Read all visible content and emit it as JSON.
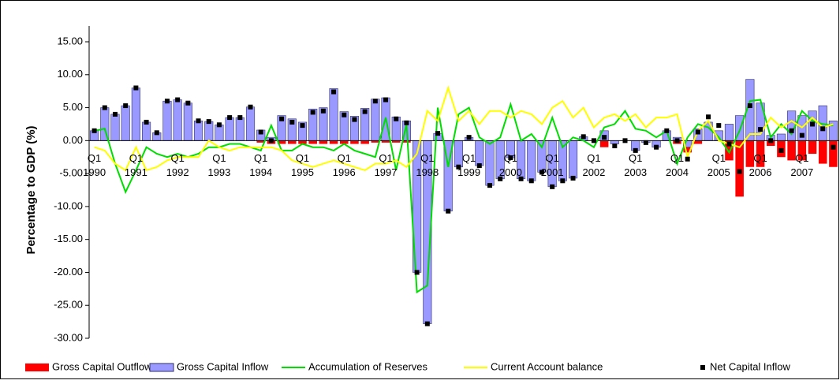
{
  "chart_data": {
    "type": "bar-line",
    "y_label": "Percentage to GDP (%)",
    "categories": [
      "Q1",
      null,
      null,
      null,
      "Q1",
      null,
      null,
      null,
      "Q1",
      null,
      null,
      null,
      "Q1",
      null,
      null,
      null,
      "Q1",
      null,
      null,
      null,
      "Q1",
      null,
      null,
      null,
      "Q1",
      null,
      null,
      null,
      "Q1",
      null,
      null,
      null,
      "Q1",
      null,
      null,
      null,
      "Q1",
      null,
      null,
      null,
      "Q1",
      null,
      null,
      null,
      "Q1",
      null,
      null,
      null,
      "Q1",
      null,
      null,
      null,
      "Q1",
      null,
      null,
      null,
      "Q1",
      null,
      null,
      null,
      "Q1",
      null,
      null,
      null,
      "Q1",
      null,
      null,
      null,
      "Q1",
      null,
      null,
      null
    ],
    "years": [
      "1990",
      "1991",
      "1992",
      "1993",
      "1994",
      "1995",
      "1996",
      "1997",
      "1998",
      "1999",
      "2000",
      "2001",
      "2002",
      "2003",
      "2004",
      "2005",
      "2006",
      "2007"
    ],
    "ylim": [
      -30,
      15
    ],
    "yticks": [
      {
        "value": 15,
        "label": "15.00"
      },
      {
        "value": 10,
        "label": "10.00"
      },
      {
        "value": 5,
        "label": "5.00"
      },
      {
        "value": 0,
        "label": "0.00"
      },
      {
        "value": -5,
        "label": "-5.00"
      },
      {
        "value": -10,
        "label": "-10.00"
      },
      {
        "value": -15,
        "label": "-15.00"
      },
      {
        "value": -20,
        "label": "-20.00"
      },
      {
        "value": -25,
        "label": "-25.00"
      },
      {
        "value": -30,
        "label": "-30.00"
      }
    ],
    "series": [
      {
        "name": "Gross Capital Outflow",
        "kind": "bar",
        "color": "#ff0000",
        "values": [
          0,
          0,
          0,
          0,
          0,
          0,
          0,
          0,
          0,
          0,
          0,
          0,
          0,
          0,
          0,
          0,
          -0.3,
          -0.5,
          -0.5,
          -0.5,
          -0.5,
          -0.5,
          -0.5,
          -0.5,
          -0.5,
          -0.5,
          -0.5,
          -0.3,
          -0.3,
          -0.3,
          -0.3,
          0,
          0,
          0,
          0,
          0,
          0,
          0,
          0,
          0,
          0,
          0,
          0,
          0,
          0,
          0,
          0,
          0,
          0,
          -1.0,
          -0.3,
          0,
          0,
          0,
          0,
          0,
          -0.5,
          -1.8,
          -0.5,
          0.8,
          0.8,
          -3.0,
          -8.5,
          -4.0,
          -4.0,
          -0.8,
          -2.5,
          -3.0,
          -3.0,
          -2.0,
          -3.5,
          -4.0
        ]
      },
      {
        "name": "Gross Capital Inflow",
        "kind": "bar",
        "color": "#9999ff",
        "values": [
          1.5,
          5.0,
          4.0,
          5.3,
          8.0,
          2.8,
          1.2,
          6.0,
          6.2,
          5.7,
          3.0,
          2.9,
          2.4,
          3.5,
          3.5,
          5.1,
          1.6,
          0.5,
          3.8,
          3.3,
          2.8,
          4.8,
          5.0,
          7.9,
          4.4,
          3.7,
          4.9,
          6.3,
          6.5,
          3.6,
          3.0,
          -20.0,
          -27.8,
          1.1,
          -10.7,
          -4.0,
          0.5,
          -3.8,
          -6.8,
          -5.8,
          -2.6,
          -5.8,
          -6.1,
          -4.8,
          -7.0,
          -6.1,
          -5.7,
          0.6,
          0.0,
          1.5,
          -0.5,
          0.0,
          -1.5,
          -0.3,
          -1.0,
          1.5,
          0.5,
          -1.0,
          1.8,
          2.8,
          1.5,
          2.5,
          3.8,
          9.3,
          5.7,
          0.8,
          1.0,
          4.5,
          3.8,
          4.5,
          5.3,
          3.0
        ]
      },
      {
        "name": "Accumulation of Reserves",
        "kind": "line",
        "color": "#00dd00",
        "values": [
          1.5,
          1.8,
          -3.5,
          -7.8,
          -4.5,
          -1.0,
          -2.0,
          -2.5,
          -2.0,
          -2.5,
          -2.0,
          -1.0,
          -1.0,
          -0.5,
          -0.5,
          -1.0,
          -1.5,
          2.3,
          -1.5,
          -1.5,
          -0.5,
          -1.0,
          -1.0,
          -1.5,
          -0.5,
          -1.5,
          -2.0,
          -2.5,
          3.5,
          -4.5,
          2.5,
          -23.0,
          -22.0,
          5.0,
          -4.0,
          4.0,
          5.0,
          0.5,
          -0.5,
          0.5,
          5.5,
          0.0,
          1.0,
          -1.0,
          3.5,
          -1.0,
          0.5,
          0.0,
          -1.0,
          2.0,
          2.5,
          4.5,
          1.8,
          1.5,
          0.5,
          1.5,
          -3.5,
          0.5,
          2.5,
          2.0,
          0.5,
          -1.8,
          1.5,
          6.0,
          6.2,
          0.5,
          2.5,
          1.0,
          4.5,
          3.0,
          2.5,
          2.3
        ]
      },
      {
        "name": "Current Account balance",
        "kind": "line",
        "color": "#ffff00",
        "values": [
          -1.0,
          -1.5,
          -3.5,
          -4.5,
          -1.0,
          -4.5,
          -4.0,
          -3.0,
          -2.5,
          -2.5,
          -2.5,
          0.0,
          -1.0,
          -1.5,
          -1.0,
          -1.0,
          -1.0,
          -1.0,
          -1.5,
          -3.0,
          -3.5,
          -4.0,
          -3.5,
          -3.0,
          -3.5,
          -4.0,
          -4.5,
          -3.5,
          -3.5,
          -3.0,
          -4.0,
          -2.0,
          4.5,
          3.0,
          8.0,
          3.0,
          4.5,
          2.5,
          4.5,
          4.5,
          3.5,
          4.5,
          4.0,
          2.5,
          5.0,
          6.0,
          3.5,
          5.0,
          2.0,
          3.5,
          4.0,
          3.0,
          4.0,
          2.0,
          3.5,
          3.5,
          4.0,
          -2.5,
          1.5,
          3.0,
          0.0,
          -0.5,
          -1.0,
          1.0,
          1.0,
          3.5,
          2.0,
          3.0,
          2.0,
          3.5,
          2.0,
          2.5
        ]
      },
      {
        "name": "Net Capital Inflow",
        "kind": "point",
        "color": "#000000",
        "values": [
          1.5,
          5.0,
          4.0,
          5.3,
          8.0,
          2.8,
          1.2,
          6.0,
          6.2,
          5.7,
          3.0,
          2.9,
          2.4,
          3.5,
          3.5,
          5.1,
          1.3,
          0.0,
          3.3,
          2.8,
          2.3,
          4.3,
          4.5,
          7.4,
          3.9,
          3.2,
          4.4,
          6.0,
          6.2,
          3.3,
          2.7,
          -20.0,
          -27.8,
          1.1,
          -10.7,
          -4.0,
          0.5,
          -3.8,
          -6.8,
          -5.8,
          -2.6,
          -5.8,
          -6.1,
          -4.8,
          -7.0,
          -6.1,
          -5.7,
          0.6,
          0.0,
          0.5,
          -0.8,
          0.0,
          -1.5,
          -0.3,
          -1.0,
          1.5,
          0.0,
          -2.8,
          1.3,
          3.6,
          2.3,
          -0.5,
          -4.7,
          5.3,
          1.7,
          0.0,
          -1.5,
          1.5,
          0.8,
          2.5,
          1.8,
          -1.0
        ]
      }
    ]
  }
}
